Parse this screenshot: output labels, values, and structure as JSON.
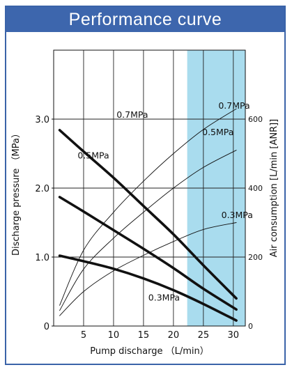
{
  "title": "Performance curve",
  "chart_data": {
    "type": "line",
    "xlabel": "Pump discharge （L/min）",
    "ylabel_left": "Discharge pressure （MPa）",
    "ylabel_right": "Air consumption [L/min [ANR]]",
    "xlim": [
      0,
      32
    ],
    "ylim_left": [
      0,
      4.0
    ],
    "ylim_right": [
      0,
      800
    ],
    "x_ticks": [
      "5",
      "10",
      "15",
      "20",
      "25",
      "30"
    ],
    "x_tick_values": [
      5,
      10,
      15,
      20,
      25,
      30
    ],
    "y_left_ticks": [
      "0",
      "1.0",
      "2.0",
      "3.0"
    ],
    "y_left_tick_values": [
      0,
      1.0,
      2.0,
      3.0
    ],
    "y_right_ticks": [
      "0",
      "200",
      "400",
      "600"
    ],
    "y_right_tick_values": [
      0,
      200,
      400,
      600
    ],
    "grid": true,
    "highlight_region": {
      "x_from": 22.3,
      "x_to": 32,
      "color": "#a9dcee"
    },
    "series": [
      {
        "name": "0.7MPa",
        "axis": "left",
        "role": "discharge pressure",
        "x": [
          1,
          5,
          10,
          15,
          20,
          25,
          30.5
        ],
        "y": [
          2.84,
          2.53,
          2.15,
          1.74,
          1.33,
          0.88,
          0.4
        ]
      },
      {
        "name": "0.5MPa",
        "axis": "left",
        "role": "discharge pressure",
        "x": [
          1,
          5,
          10,
          15,
          20,
          25,
          30.5
        ],
        "y": [
          1.87,
          1.66,
          1.39,
          1.12,
          0.84,
          0.54,
          0.24
        ]
      },
      {
        "name": "0.3MPa",
        "axis": "left",
        "role": "discharge pressure",
        "x": [
          1,
          5,
          10,
          15,
          20,
          25,
          30.5
        ],
        "y": [
          1.02,
          0.94,
          0.83,
          0.69,
          0.52,
          0.32,
          0.08
        ]
      },
      {
        "name": "0.7MPa",
        "axis": "right",
        "role": "air consumption",
        "x": [
          1,
          5,
          10,
          15,
          20,
          25,
          30.5
        ],
        "y": [
          60,
          220,
          330,
          420,
          500,
          570,
          630
        ]
      },
      {
        "name": "0.5MPa",
        "axis": "right",
        "role": "air consumption",
        "x": [
          1,
          5,
          10,
          15,
          20,
          25,
          30.5
        ],
        "y": [
          45,
          165,
          255,
          330,
          400,
          460,
          510
        ]
      },
      {
        "name": "0.3MPa",
        "axis": "right",
        "role": "air consumption",
        "x": [
          1,
          5,
          10,
          15,
          20,
          25,
          30.5
        ],
        "y": [
          30,
          100,
          160,
          205,
          245,
          280,
          300
        ]
      }
    ],
    "annotations": [
      {
        "text": "0.7MPa",
        "x": 10.5,
        "y": 3.02,
        "axis": "left"
      },
      {
        "text": "0.5MPa",
        "x": 4.0,
        "y": 2.43,
        "axis": "left"
      },
      {
        "text": "0.3MPa",
        "x": 15.8,
        "y": 0.37,
        "axis": "left"
      },
      {
        "text": "0.7MPa",
        "x": 27.5,
        "y": 630,
        "axis": "right"
      },
      {
        "text": "0.5MPa",
        "x": 24.8,
        "y": 554,
        "axis": "right"
      },
      {
        "text": "0.3MPa",
        "x": 28.0,
        "y": 313,
        "axis": "right"
      }
    ]
  }
}
